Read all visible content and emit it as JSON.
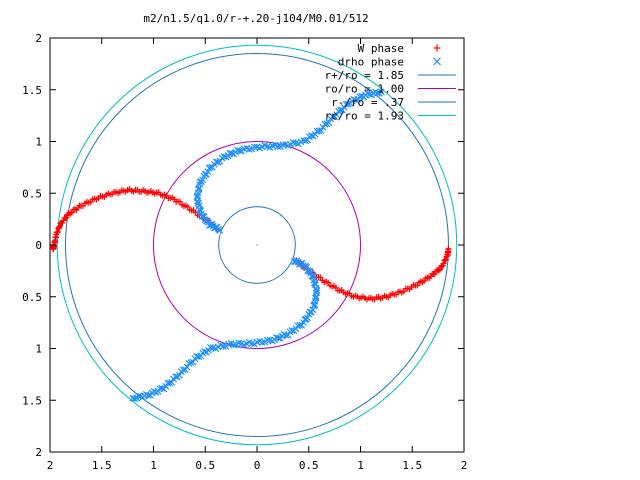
{
  "chart_data": {
    "type": "scatter",
    "title": "m2/n1.5/q1.0/r-+.20-j104/M0.01/512",
    "xlim": [
      -2,
      2
    ],
    "ylim": [
      -2,
      2
    ],
    "x_tick_values": [
      -2,
      -1.5,
      -1,
      -0.5,
      0,
      0.5,
      1,
      1.5,
      2
    ],
    "x_tick_labels": [
      "2",
      "1.5",
      "1",
      "0.5",
      "0",
      "0.5",
      "1",
      "1.5",
      "2"
    ],
    "y_tick_values": [
      2,
      1.5,
      1,
      0.5,
      0,
      -0.5,
      -1,
      -1.5,
      -2
    ],
    "y_tick_labels": [
      "2",
      "1.5",
      "1",
      "0.5",
      "0",
      "0.5",
      "1",
      "1.5",
      "2"
    ],
    "grid": false,
    "legend_position": "top-right",
    "scatter_series": [
      {
        "name": "W phase",
        "marker": "plus",
        "color": "#ff0000",
        "arms": [
          [
            [
              -0.38,
              0.15
            ],
            [
              -0.5,
              0.25
            ],
            [
              -0.65,
              0.35
            ],
            [
              -0.8,
              0.44
            ],
            [
              -0.95,
              0.5
            ],
            [
              -1.1,
              0.52
            ],
            [
              -1.25,
              0.53
            ],
            [
              -1.4,
              0.5
            ],
            [
              -1.55,
              0.45
            ],
            [
              -1.7,
              0.38
            ],
            [
              -1.82,
              0.3
            ],
            [
              -1.9,
              0.2
            ],
            [
              -1.94,
              0.1
            ],
            [
              -1.96,
              0.0
            ],
            [
              -1.97,
              -0.04
            ]
          ],
          [
            [
              0.38,
              -0.15
            ],
            [
              0.5,
              -0.25
            ],
            [
              0.65,
              -0.35
            ],
            [
              0.8,
              -0.44
            ],
            [
              0.95,
              -0.5
            ],
            [
              1.1,
              -0.52
            ],
            [
              1.25,
              -0.5
            ],
            [
              1.4,
              -0.45
            ],
            [
              1.55,
              -0.38
            ],
            [
              1.68,
              -0.3
            ],
            [
              1.78,
              -0.22
            ],
            [
              1.84,
              -0.1
            ],
            [
              1.85,
              -0.04
            ]
          ]
        ]
      },
      {
        "name": "drho phase",
        "marker": "cross",
        "color": "#1e90ff",
        "arms": [
          [
            [
              -0.36,
              0.15
            ],
            [
              -0.46,
              0.2
            ],
            [
              -0.54,
              0.3
            ],
            [
              -0.58,
              0.45
            ],
            [
              -0.55,
              0.6
            ],
            [
              -0.45,
              0.75
            ],
            [
              -0.3,
              0.86
            ],
            [
              -0.15,
              0.92
            ],
            [
              0.05,
              0.95
            ],
            [
              0.25,
              0.96
            ],
            [
              0.45,
              1.0
            ],
            [
              0.6,
              1.1
            ],
            [
              0.75,
              1.25
            ],
            [
              0.9,
              1.38
            ],
            [
              1.05,
              1.45
            ],
            [
              1.2,
              1.48
            ]
          ],
          [
            [
              0.36,
              -0.15
            ],
            [
              0.46,
              -0.2
            ],
            [
              0.54,
              -0.3
            ],
            [
              0.58,
              -0.45
            ],
            [
              0.55,
              -0.6
            ],
            [
              0.45,
              -0.75
            ],
            [
              0.3,
              -0.86
            ],
            [
              0.15,
              -0.92
            ],
            [
              -0.05,
              -0.95
            ],
            [
              -0.25,
              -0.96
            ],
            [
              -0.45,
              -1.0
            ],
            [
              -0.6,
              -1.1
            ],
            [
              -0.75,
              -1.25
            ],
            [
              -0.9,
              -1.38
            ],
            [
              -1.05,
              -1.45
            ],
            [
              -1.2,
              -1.48
            ]
          ]
        ]
      }
    ],
    "circles": [
      {
        "name": "r+/ro = 1.85",
        "radius": 1.85,
        "color": "#1f77b4"
      },
      {
        "name": "ro/ro = 1.00",
        "radius": 1.0,
        "color": "#b000b0"
      },
      {
        "name": "r-/ro = .37",
        "radius": 0.37,
        "color": "#1f77b4"
      },
      {
        "name": "rc/ro = 1.93",
        "radius": 1.93,
        "color": "#00c0c0"
      }
    ],
    "legend": [
      {
        "label": "W phase",
        "marker": "plus",
        "color": "#ff0000"
      },
      {
        "label": "drho phase",
        "marker": "cross",
        "color": "#1e90ff"
      },
      {
        "label": "r+/ro = 1.85",
        "marker": "line",
        "color": "#1f77b4"
      },
      {
        "label": "ro/ro = 1.00",
        "marker": "line",
        "color": "#b000b0"
      },
      {
        "label": "r-/ro = .37",
        "marker": "line",
        "color": "#1f77b4"
      },
      {
        "label": "rc/ro = 1.93",
        "marker": "line",
        "color": "#00c0c0"
      }
    ]
  }
}
